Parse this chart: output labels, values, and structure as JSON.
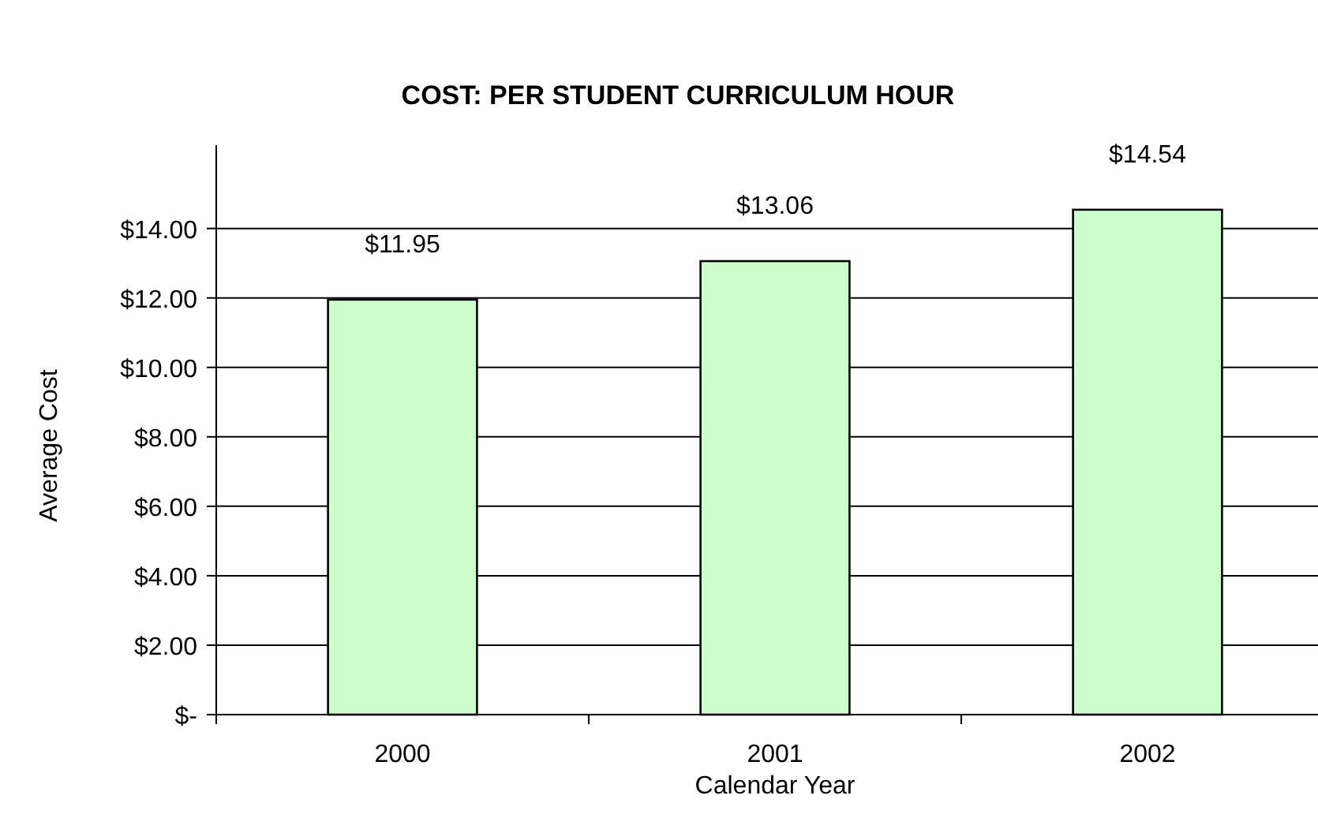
{
  "chart_data": {
    "type": "bar",
    "title": "COST: PER STUDENT CURRICULUM HOUR",
    "xlabel": "Calendar Year",
    "ylabel": "Average Cost",
    "categories": [
      "2000",
      "2001",
      "2002"
    ],
    "values": [
      11.95,
      13.06,
      14.54
    ],
    "value_labels": [
      "$11.95",
      "$13.06",
      "$14.54"
    ],
    "color": "#ccffcc",
    "ylim": [
      0,
      16.4
    ],
    "yticks": [
      {
        "value": 0,
        "label": "$-"
      },
      {
        "value": 2,
        "label": "$2.00"
      },
      {
        "value": 4,
        "label": "$4.00"
      },
      {
        "value": 6,
        "label": "$6.00"
      },
      {
        "value": 8,
        "label": "$8.00"
      },
      {
        "value": 10,
        "label": "$10.00"
      },
      {
        "value": 12,
        "label": "$12.00"
      },
      {
        "value": 14,
        "label": "$14.00"
      }
    ],
    "grid": "y"
  }
}
